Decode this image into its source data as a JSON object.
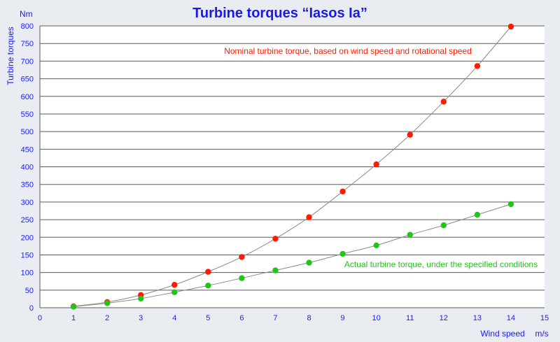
{
  "chart_data": {
    "type": "scatter",
    "title": "Turbine torques “Iasos Ia”",
    "ylabel": "Turbine torques",
    "yunit": "Nm",
    "xlabel": "Wind speed",
    "xunit": "m/s",
    "xlim": [
      0,
      15
    ],
    "ylim": [
      0,
      800
    ],
    "xticks": [
      0,
      1,
      2,
      3,
      4,
      5,
      6,
      7,
      8,
      9,
      10,
      11,
      12,
      13,
      14,
      15
    ],
    "yticks": [
      0,
      50,
      100,
      150,
      200,
      250,
      300,
      350,
      400,
      450,
      500,
      550,
      600,
      650,
      700,
      750,
      800
    ],
    "grid": true,
    "series": [
      {
        "name": "Nominal turbine torque, based on wind speed and rotational speed",
        "color": "#ff1a00",
        "x": [
          1,
          2,
          3,
          4,
          5,
          6,
          7,
          8,
          9,
          10,
          11,
          12,
          13,
          14
        ],
        "y": [
          4,
          16,
          36,
          65,
          102,
          144,
          196,
          257,
          330,
          407,
          491,
          585,
          686,
          798
        ]
      },
      {
        "name": "Actual turbine torque, under the specified conditions",
        "color": "#22c41a",
        "x": [
          1,
          2,
          3,
          4,
          5,
          6,
          7,
          8,
          9,
          10,
          11,
          12,
          13,
          14
        ],
        "y": [
          3,
          13,
          26,
          44,
          63,
          84,
          106,
          128,
          153,
          177,
          207,
          234,
          264,
          294
        ]
      }
    ]
  }
}
